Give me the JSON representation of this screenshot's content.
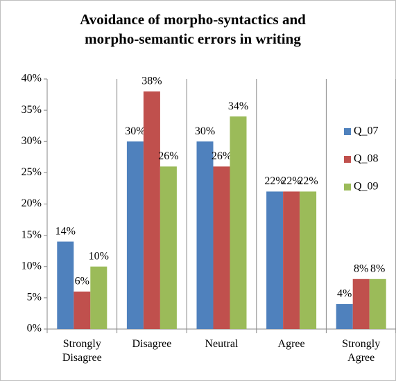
{
  "chart_data": {
    "type": "bar",
    "title": "Avoidance of morpho-syntactics and morpho-semantic errors in writing",
    "categories": [
      "Strongly Disagree",
      "Disagree",
      "Neutral",
      "Agree",
      "Strongly Agree"
    ],
    "series": [
      {
        "name": "Q_07",
        "color": "#4f81bd",
        "values": [
          14,
          30,
          30,
          22,
          4
        ],
        "value_labels": [
          "14%",
          "30%",
          "30%",
          "22%",
          "4%"
        ]
      },
      {
        "name": "Q_08",
        "color": "#c0504d",
        "values": [
          6,
          38,
          26,
          22,
          8
        ],
        "value_labels": [
          "6%",
          "38%",
          "26%",
          "22%",
          "8%"
        ]
      },
      {
        "name": "Q_09",
        "color": "#9bbb59",
        "values": [
          10,
          26,
          34,
          22,
          8
        ],
        "value_labels": [
          "10%",
          "26%",
          "34%",
          "22%",
          "8%"
        ]
      }
    ],
    "ylim": [
      0,
      40
    ],
    "yticks": [
      {
        "value": 0,
        "label": "0%"
      },
      {
        "value": 5,
        "label": "5%"
      },
      {
        "value": 10,
        "label": "10%"
      },
      {
        "value": 15,
        "label": "15%"
      },
      {
        "value": 20,
        "label": "20%"
      },
      {
        "value": 25,
        "label": "25%"
      },
      {
        "value": 30,
        "label": "30%"
      },
      {
        "value": 35,
        "label": "35%"
      },
      {
        "value": 40,
        "label": "40%"
      }
    ],
    "legend": "right"
  }
}
